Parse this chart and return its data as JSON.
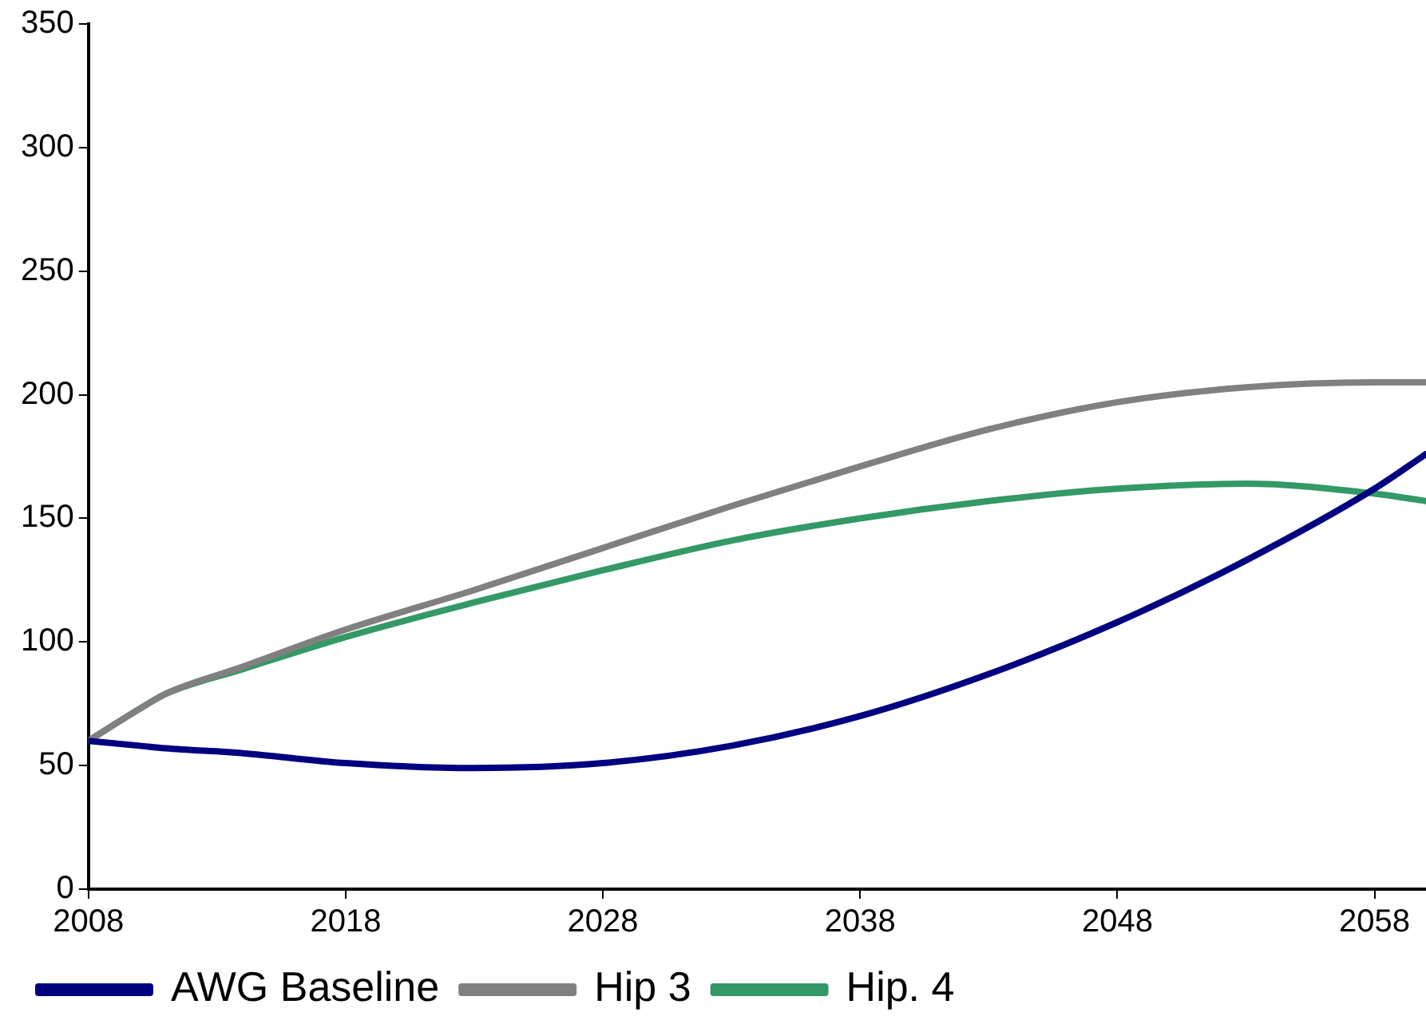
{
  "chart_data": {
    "type": "line",
    "x": [
      2008,
      2010,
      2011,
      2014,
      2018,
      2023,
      2028,
      2033,
      2038,
      2043,
      2048,
      2053,
      2058,
      2060
    ],
    "series": [
      {
        "name": "AWG Baseline",
        "color": "#000080",
        "values": [
          60,
          58,
          57,
          55,
          51,
          49,
          51,
          58,
          70,
          87,
          108,
          133,
          162,
          176
        ]
      },
      {
        "name": "Hip 3",
        "color": "#808080",
        "values": [
          60,
          73,
          79,
          90,
          105,
          121,
          138,
          155,
          171,
          186,
          197,
          203,
          205,
          205
        ]
      },
      {
        "name": "Hip. 4",
        "color": "#339966",
        "values": [
          60,
          73,
          79,
          89,
          102,
          116,
          129,
          141,
          150,
          157,
          162,
          164,
          160,
          157
        ]
      }
    ],
    "xlim": [
      2008,
      2060
    ],
    "xticks": [
      2008,
      2018,
      2028,
      2038,
      2048,
      2058
    ],
    "ylim": [
      0,
      350
    ],
    "yticks": [
      0,
      50,
      100,
      150,
      200,
      250,
      300,
      350
    ],
    "grid": false,
    "legend": "bottom",
    "marker": "none",
    "line_style": "solid"
  }
}
